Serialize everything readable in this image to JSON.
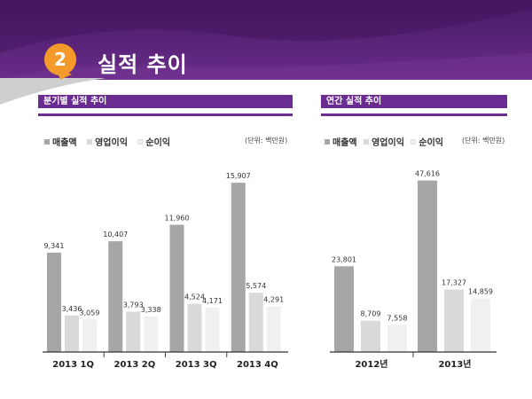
{
  "header": {
    "badge": "2",
    "title": "실적 추이"
  },
  "colors": {
    "purple": "#6b2c91",
    "orange": "#f39a2b",
    "revenue": "#a6a6a6",
    "op_profit": "#d9d9d9",
    "net_income": "#f0f0f0"
  },
  "quarterly": {
    "section_title": "분기별 실적 추이",
    "unit": "(단위: 백만원)",
    "legend": [
      "매출액",
      "영업이익",
      "순이익"
    ]
  },
  "annual": {
    "section_title": "연간 실적 추이",
    "unit": "(단위: 백만원)",
    "legend": [
      "매출액",
      "영업이익",
      "순이익"
    ]
  },
  "chart_data": [
    {
      "type": "bar",
      "categories": [
        "2013 1Q",
        "2013 2Q",
        "2013 3Q",
        "2013 4Q"
      ],
      "series": [
        {
          "name": "매출액",
          "values": [
            9341,
            10407,
            11960,
            15907
          ],
          "labels": [
            "9,341",
            "10,407",
            "11,960",
            "15,907"
          ]
        },
        {
          "name": "영업이익",
          "values": [
            3436,
            3793,
            4524,
            5574
          ],
          "labels": [
            "3,436",
            "3,793",
            "4,524",
            "5,574"
          ]
        },
        {
          "name": "순이익",
          "values": [
            3059,
            3338,
            4171,
            4291
          ],
          "labels": [
            "3,059",
            "3,338",
            "4,171",
            "4,291"
          ]
        }
      ],
      "ylim": [
        0,
        16000
      ],
      "legend_position": "top-left",
      "grid": false
    },
    {
      "type": "bar",
      "categories": [
        "2012년",
        "2013년"
      ],
      "series": [
        {
          "name": "매출액",
          "values": [
            23801,
            47616
          ],
          "labels": [
            "23,801",
            "47,616"
          ]
        },
        {
          "name": "영업이익",
          "values": [
            8709,
            17327
          ],
          "labels": [
            "8,709",
            "17,327"
          ]
        },
        {
          "name": "순이익",
          "values": [
            7558,
            14859
          ],
          "labels": [
            "7,558",
            "14,859"
          ]
        }
      ],
      "ylim": [
        0,
        48000
      ],
      "legend_position": "top-left",
      "grid": false
    }
  ]
}
